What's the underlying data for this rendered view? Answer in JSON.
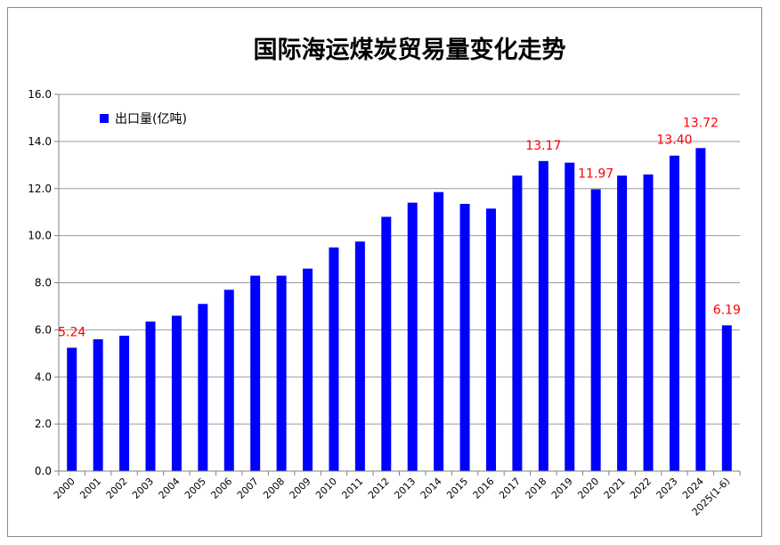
{
  "chart_data": {
    "type": "bar",
    "title": "国际海运煤炭贸易量变化走势",
    "categories": [
      "2000",
      "2001",
      "2002",
      "2003",
      "2004",
      "2005",
      "2006",
      "2007",
      "2008",
      "2009",
      "2010",
      "2011",
      "2012",
      "2013",
      "2014",
      "2015",
      "2016",
      "2017",
      "2018",
      "2019",
      "2020",
      "2021",
      "2022",
      "2023",
      "2024",
      "2025(1-6)"
    ],
    "series": [
      {
        "name": "出口量(亿吨)",
        "color": "#0000ff",
        "values": [
          5.24,
          5.6,
          5.75,
          6.35,
          6.6,
          7.1,
          7.7,
          8.3,
          8.3,
          8.6,
          9.5,
          9.75,
          10.8,
          11.4,
          11.85,
          11.35,
          11.15,
          12.55,
          13.17,
          13.1,
          11.97,
          12.55,
          12.6,
          13.4,
          13.72,
          6.19
        ]
      }
    ],
    "data_labels": [
      {
        "category": "2000",
        "text": "5.24"
      },
      {
        "category": "2018",
        "text": "13.17"
      },
      {
        "category": "2020",
        "text": "11.97"
      },
      {
        "category": "2023",
        "text": "13.40"
      },
      {
        "category": "2024",
        "text": "13.72"
      },
      {
        "category": "2025(1-6)",
        "text": "6.19"
      }
    ],
    "yticks": [
      "0.0",
      "2.0",
      "4.0",
      "6.0",
      "8.0",
      "10.0",
      "12.0",
      "14.0",
      "16.0"
    ],
    "ylim": [
      0,
      16
    ],
    "grid": true,
    "legend_position": "top-left",
    "label_color": "#ff0000"
  }
}
